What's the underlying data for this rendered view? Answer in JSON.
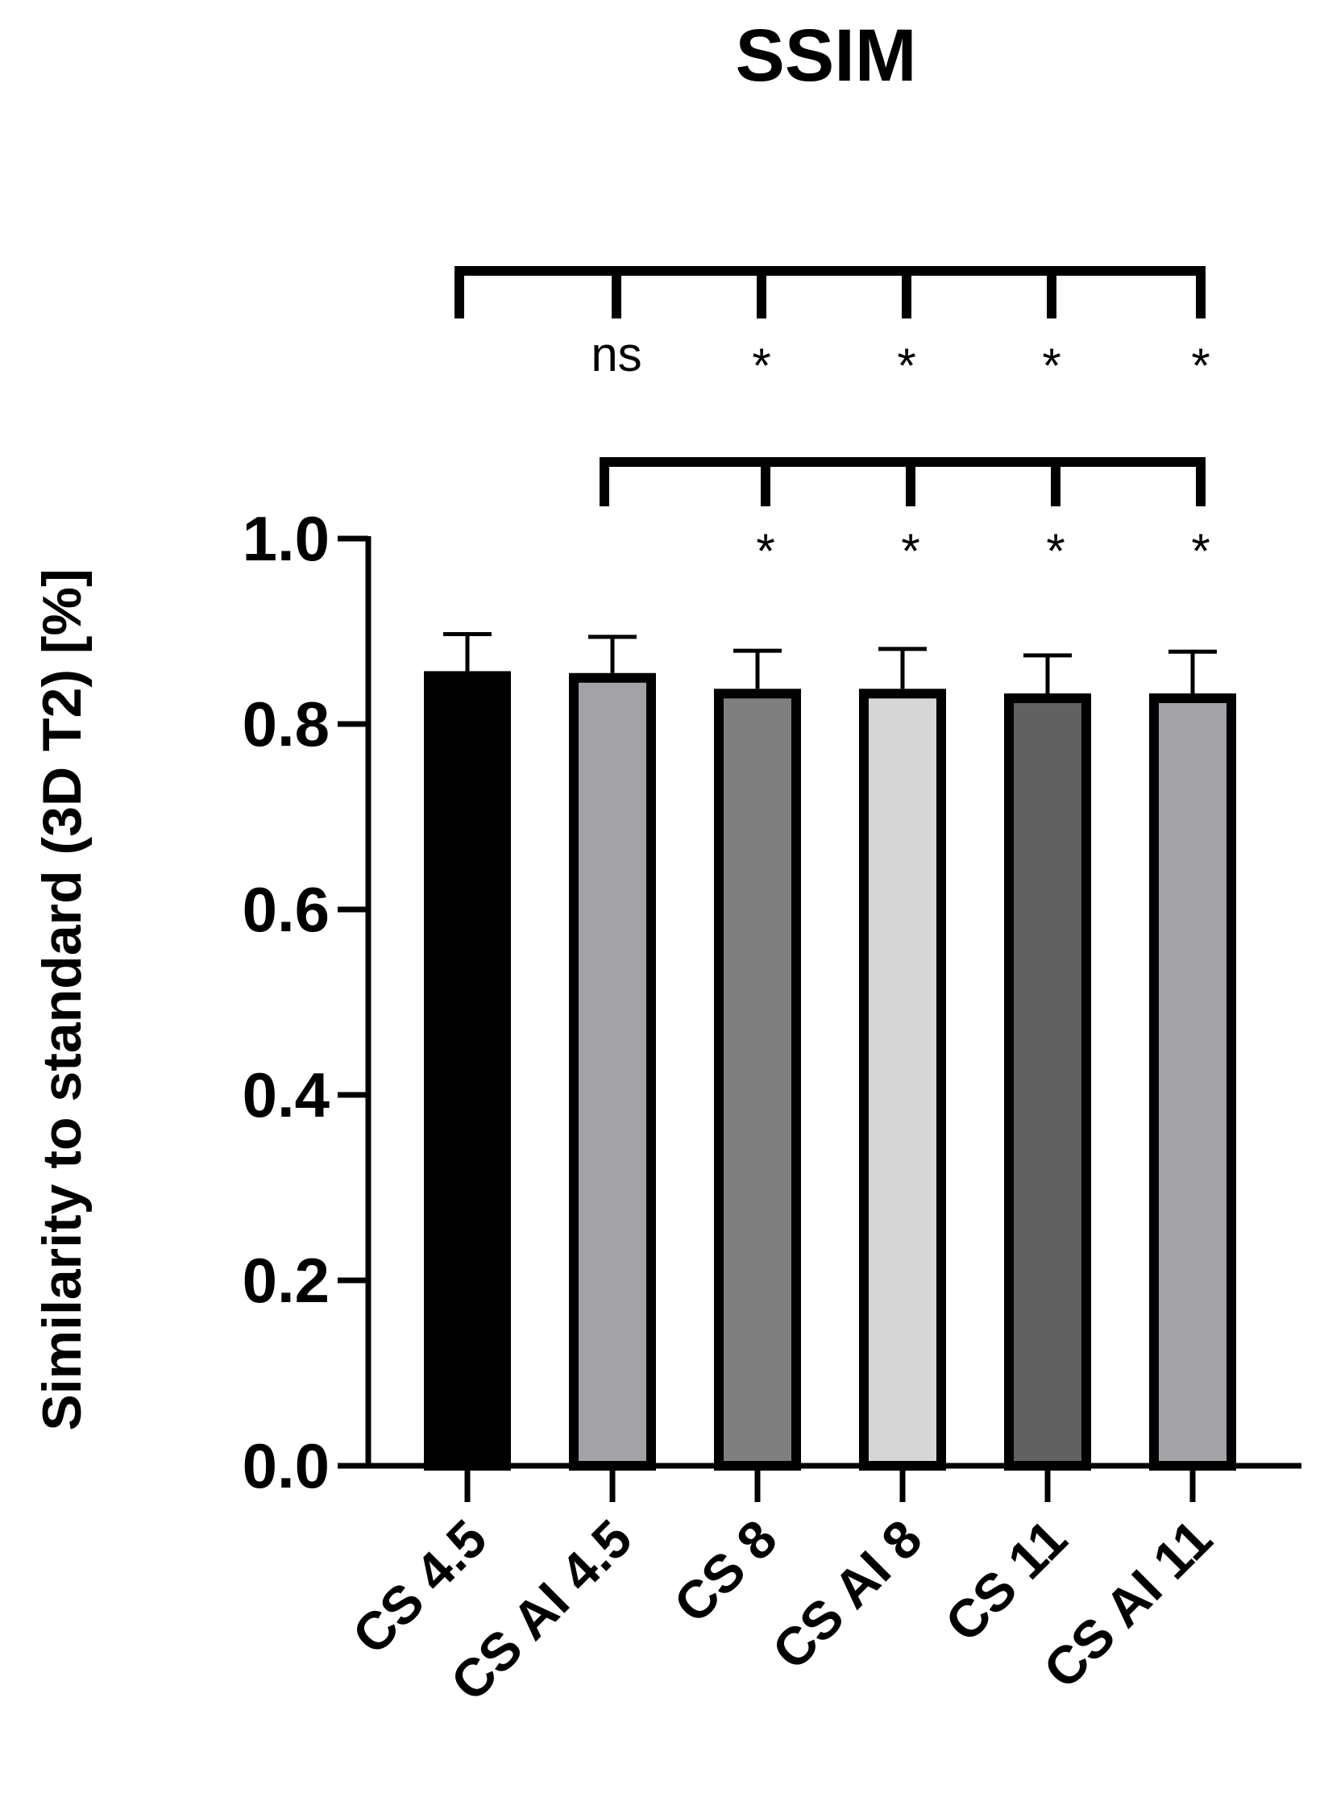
{
  "chart_data": {
    "type": "bar",
    "title": "SSIM",
    "xlabel": "",
    "ylabel": "Similarity to standard  (3D T2) [%]",
    "ylim": [
      0,
      1.0
    ],
    "yticks": [
      0.0,
      0.2,
      0.4,
      0.6,
      0.8,
      1.0
    ],
    "ytick_labels": [
      "0.0",
      "0.2",
      "0.4",
      "0.6",
      "0.8",
      "1.0"
    ],
    "grid": false,
    "categories": [
      "CS 4.5",
      "CS AI 4.5",
      "CS 8",
      "CS AI 8",
      "CS 11",
      "CS AI 11"
    ],
    "values": [
      0.857,
      0.855,
      0.838,
      0.838,
      0.833,
      0.833
    ],
    "errors": [
      0.04,
      0.039,
      0.041,
      0.043,
      0.041,
      0.045
    ],
    "bar_colors": [
      "#000000",
      "#a3a3a7",
      "#7f7f7f",
      "#d6d6d6",
      "#616161",
      "#a3a3a7"
    ],
    "significance": [
      {
        "reference": "CS 4.5",
        "marks": [
          {
            "category": "CS AI 4.5",
            "label": "ns"
          },
          {
            "category": "CS 8",
            "label": "*"
          },
          {
            "category": "CS AI 8",
            "label": "*"
          },
          {
            "category": "CS 11",
            "label": "*"
          },
          {
            "category": "CS AI 11",
            "label": "*"
          }
        ]
      },
      {
        "reference": "CS AI 4.5",
        "marks": [
          {
            "category": "CS 8",
            "label": "*"
          },
          {
            "category": "CS AI 8",
            "label": "*"
          },
          {
            "category": "CS 11",
            "label": "*"
          },
          {
            "category": "CS AI 11",
            "label": "*"
          }
        ]
      }
    ]
  }
}
